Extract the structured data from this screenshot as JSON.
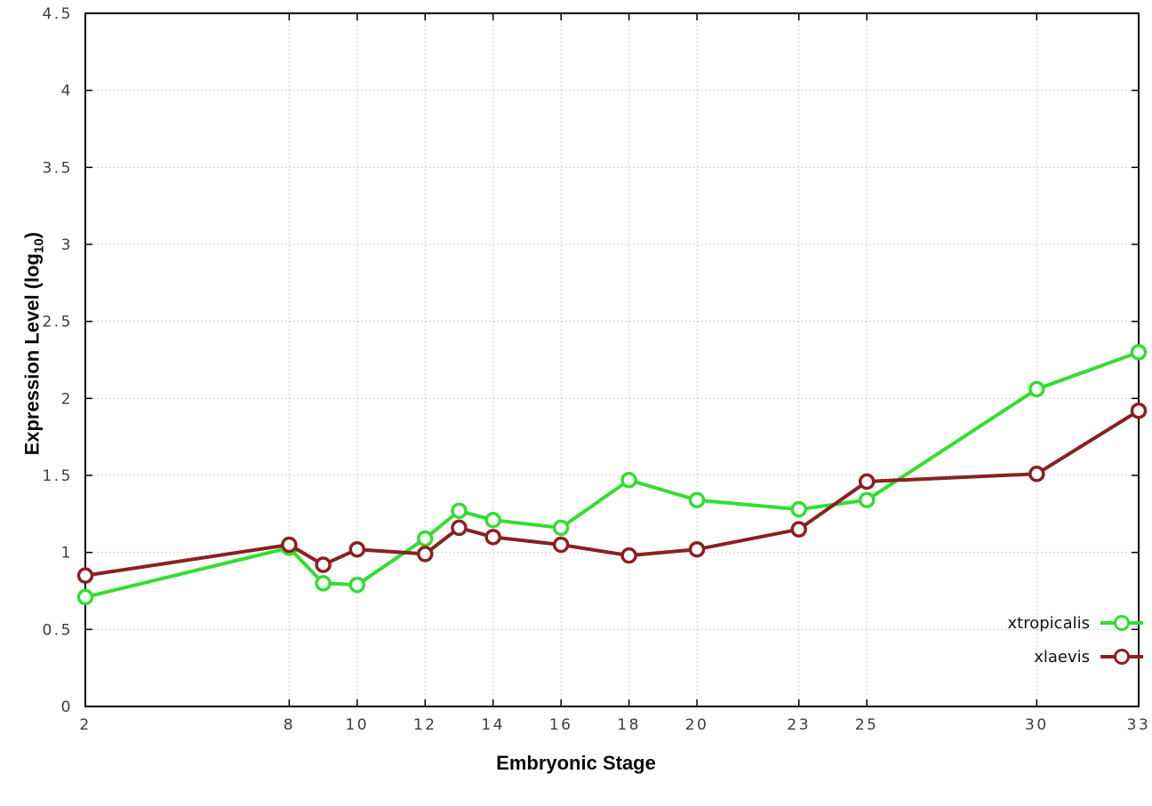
{
  "chart_data": {
    "type": "line",
    "title": "",
    "xlabel": "Embryonic Stage",
    "ylabel": "Expression Level (log10)",
    "ylabel_parts": {
      "main": "Expression Level (log",
      "sub": "10",
      "end": ")"
    },
    "xlim": [
      2,
      33
    ],
    "ylim": [
      0,
      4.5
    ],
    "grid": true,
    "legend_position": "bottom-right",
    "x_tick_labels": [
      "2",
      "8",
      "10",
      "12",
      "14",
      "16",
      "18",
      "20",
      "23",
      "25",
      "30",
      "33"
    ],
    "x_ticks": [
      2,
      8,
      10,
      12,
      14,
      16,
      18,
      20,
      23,
      25,
      30,
      33
    ],
    "y_tick_labels": [
      "0",
      "0.5",
      "1",
      "1.5",
      "2",
      "2.5",
      "3",
      "3.5",
      "4",
      "4.5"
    ],
    "y_ticks": [
      0,
      0.5,
      1,
      1.5,
      2,
      2.5,
      3,
      3.5,
      4,
      4.5
    ],
    "x": [
      2,
      8,
      9,
      10,
      12,
      13,
      14,
      16,
      18,
      20,
      23,
      25,
      30,
      33
    ],
    "series": [
      {
        "name": "xtropicalis",
        "color": "#33dd33",
        "values": [
          0.71,
          1.03,
          0.8,
          0.79,
          1.09,
          1.27,
          1.21,
          1.16,
          1.47,
          1.34,
          1.28,
          1.34,
          2.06,
          2.3
        ]
      },
      {
        "name": "xlaevis",
        "color": "#8b2020",
        "values": [
          0.85,
          1.05,
          0.92,
          1.02,
          0.99,
          1.16,
          1.1,
          1.05,
          0.98,
          1.02,
          1.15,
          1.46,
          1.51,
          1.92
        ]
      }
    ],
    "colors": {
      "grid": "#c4c4c4",
      "border": "#000000",
      "tick_text": "#3d3d3d"
    }
  }
}
